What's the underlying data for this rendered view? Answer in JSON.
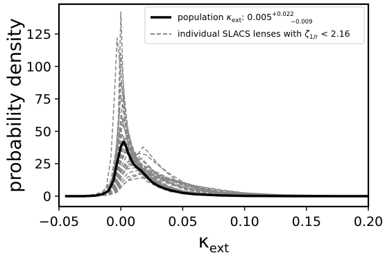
{
  "chart_data": {
    "type": "line",
    "xlabel": "κ",
    "xlabel_sub": "ext",
    "ylabel": "probability density",
    "xlim": [
      -0.05,
      0.2
    ],
    "ylim": [
      -8,
      148
    ],
    "x_ticks": [
      -0.05,
      0.0,
      0.05,
      0.1,
      0.15,
      0.2
    ],
    "x_tick_labels": [
      "−0.05",
      "0.00",
      "0.05",
      "0.10",
      "0.15",
      "0.20"
    ],
    "y_ticks": [
      0,
      25,
      50,
      75,
      100,
      125
    ],
    "y_tick_labels": [
      "0",
      "25",
      "50",
      "75",
      "100",
      "125"
    ],
    "legend": {
      "placement": "top-right",
      "entries": [
        {
          "kind": "population",
          "label_prefix": "population ",
          "label_math": "κ",
          "label_sub": "ext",
          "label_value": ": 0.005",
          "label_sup": "+0.022",
          "label_low": "−0.009"
        },
        {
          "kind": "individual",
          "label_prefix": "individual SLACS lenses with ",
          "label_math": "ζ",
          "label_sub": "1/r",
          "label_value": " < 2.16"
        }
      ]
    },
    "colors": {
      "population": "#000000",
      "individual": "#888888"
    },
    "series": [
      {
        "role": "population",
        "x": [
          -0.045,
          -0.03,
          -0.02,
          -0.015,
          -0.01,
          -0.006,
          -0.003,
          0.0,
          0.002,
          0.004,
          0.006,
          0.008,
          0.01,
          0.013,
          0.016,
          0.02,
          0.025,
          0.03,
          0.035,
          0.04,
          0.05,
          0.06,
          0.08,
          0.1,
          0.14,
          0.2
        ],
        "y": [
          0,
          0,
          0.5,
          1.5,
          4,
          12,
          26,
          38,
          42,
          39,
          33,
          29,
          25,
          22,
          20,
          16,
          11,
          8,
          6,
          4.5,
          2.5,
          1.5,
          0.6,
          0.2,
          0,
          0
        ]
      },
      {
        "role": "individual",
        "x": [
          -0.045,
          -0.02,
          -0.01,
          -0.005,
          -0.002,
          0.0,
          0.002,
          0.004,
          0.007,
          0.01,
          0.015,
          0.02,
          0.03,
          0.04,
          0.06,
          0.1,
          0.2
        ],
        "y": [
          0,
          0.5,
          3,
          15,
          60,
          142,
          85,
          52,
          38,
          28,
          20,
          14,
          8,
          4,
          1.5,
          0.3,
          0
        ]
      },
      {
        "role": "individual",
        "x": [
          -0.045,
          -0.02,
          -0.012,
          -0.008,
          -0.005,
          -0.003,
          0.0,
          0.003,
          0.006,
          0.01,
          0.015,
          0.02,
          0.03,
          0.04,
          0.06,
          0.1,
          0.2
        ],
        "y": [
          0,
          0.5,
          5,
          30,
          80,
          122,
          95,
          60,
          40,
          27,
          18,
          12,
          7,
          3.5,
          1.2,
          0.2,
          0
        ]
      },
      {
        "role": "individual",
        "x": [
          -0.045,
          -0.02,
          -0.01,
          -0.005,
          -0.002,
          0.0,
          0.003,
          0.006,
          0.01,
          0.015,
          0.02,
          0.03,
          0.04,
          0.06,
          0.1,
          0.2
        ],
        "y": [
          0,
          0.5,
          4,
          18,
          55,
          110,
          75,
          48,
          32,
          22,
          15,
          9,
          5,
          2,
          0.4,
          0
        ]
      },
      {
        "role": "individual",
        "x": [
          -0.045,
          -0.02,
          -0.01,
          -0.005,
          -0.002,
          0.0,
          0.003,
          0.006,
          0.01,
          0.015,
          0.02,
          0.03,
          0.04,
          0.06,
          0.1,
          0.2
        ],
        "y": [
          0,
          0.5,
          4,
          20,
          50,
          88,
          70,
          50,
          35,
          25,
          18,
          10,
          6,
          2.5,
          0.5,
          0
        ]
      },
      {
        "role": "individual",
        "x": [
          -0.045,
          -0.02,
          -0.012,
          -0.006,
          -0.003,
          0.0,
          0.003,
          0.006,
          0.01,
          0.015,
          0.02,
          0.03,
          0.04,
          0.06,
          0.1,
          0.2
        ],
        "y": [
          0,
          0.5,
          3,
          15,
          45,
          78,
          60,
          44,
          32,
          22,
          16,
          9,
          5,
          2,
          0.5,
          0
        ]
      },
      {
        "role": "individual",
        "x": [
          -0.045,
          -0.02,
          -0.01,
          -0.005,
          -0.002,
          0.001,
          0.004,
          0.008,
          0.012,
          0.018,
          0.025,
          0.035,
          0.05,
          0.07,
          0.1,
          0.2
        ],
        "y": [
          0,
          0.5,
          3,
          14,
          40,
          70,
          58,
          42,
          31,
          22,
          15,
          9,
          4,
          1.5,
          0.4,
          0
        ]
      },
      {
        "role": "individual",
        "x": [
          -0.045,
          -0.02,
          -0.01,
          -0.005,
          -0.002,
          0.001,
          0.004,
          0.008,
          0.012,
          0.018,
          0.025,
          0.035,
          0.05,
          0.07,
          0.1,
          0.2
        ],
        "y": [
          0,
          0.5,
          3,
          12,
          35,
          62,
          54,
          40,
          30,
          21,
          15,
          9,
          4,
          1.5,
          0.4,
          0
        ]
      },
      {
        "role": "individual",
        "x": [
          -0.045,
          -0.02,
          -0.01,
          -0.006,
          -0.002,
          0.001,
          0.004,
          0.008,
          0.012,
          0.018,
          0.025,
          0.035,
          0.05,
          0.07,
          0.1,
          0.2
        ],
        "y": [
          0,
          0.5,
          2.5,
          10,
          30,
          55,
          50,
          38,
          28,
          20,
          14,
          8,
          4,
          1.5,
          0.3,
          0
        ]
      },
      {
        "role": "individual",
        "x": [
          -0.045,
          -0.02,
          -0.01,
          -0.005,
          0.0,
          0.004,
          0.008,
          0.012,
          0.017,
          0.022,
          0.03,
          0.04,
          0.05,
          0.07,
          0.1,
          0.2
        ],
        "y": [
          0,
          0.5,
          2,
          8,
          26,
          34,
          30,
          27,
          29,
          24,
          16,
          10,
          5.5,
          2,
          0.5,
          0
        ]
      },
      {
        "role": "individual",
        "x": [
          -0.045,
          -0.02,
          -0.01,
          -0.005,
          0.0,
          0.005,
          0.01,
          0.015,
          0.018,
          0.022,
          0.028,
          0.035,
          0.045,
          0.06,
          0.08,
          0.12,
          0.2
        ],
        "y": [
          0,
          0.3,
          1.5,
          5,
          15,
          22,
          28,
          34,
          38,
          34,
          27,
          20,
          12,
          6,
          2.5,
          0.5,
          0
        ]
      },
      {
        "role": "individual",
        "x": [
          -0.045,
          -0.02,
          -0.01,
          -0.005,
          0.0,
          0.005,
          0.01,
          0.015,
          0.02,
          0.025,
          0.03,
          0.04,
          0.05,
          0.06,
          0.08,
          0.12,
          0.2
        ],
        "y": [
          0,
          0.3,
          1.5,
          6,
          18,
          26,
          30,
          33,
          32,
          28,
          24,
          17,
          11,
          7,
          3,
          0.7,
          0
        ]
      },
      {
        "role": "individual",
        "x": [
          -0.045,
          -0.02,
          -0.01,
          -0.005,
          0.0,
          0.004,
          0.008,
          0.013,
          0.02,
          0.028,
          0.035,
          0.045,
          0.06,
          0.08,
          0.12,
          0.2
        ],
        "y": [
          0,
          0.4,
          2,
          9,
          30,
          40,
          34,
          28,
          22,
          17,
          13,
          9,
          5,
          2.5,
          0.6,
          0
        ]
      },
      {
        "role": "individual",
        "x": [
          -0.045,
          -0.02,
          -0.01,
          -0.004,
          0.0,
          0.004,
          0.009,
          0.015,
          0.022,
          0.03,
          0.04,
          0.05,
          0.07,
          0.1,
          0.2
        ],
        "y": [
          0,
          0.4,
          2.5,
          11,
          32,
          45,
          38,
          27,
          18,
          12,
          7,
          4,
          1.5,
          0.4,
          0
        ]
      },
      {
        "role": "individual",
        "x": [
          -0.045,
          -0.02,
          -0.01,
          -0.004,
          0.0,
          0.004,
          0.009,
          0.015,
          0.022,
          0.03,
          0.04,
          0.055,
          0.07,
          0.1,
          0.2
        ],
        "y": [
          0,
          0.4,
          2.5,
          10,
          28,
          36,
          31,
          24,
          18,
          13,
          9,
          5,
          2.5,
          0.6,
          0
        ]
      },
      {
        "role": "individual",
        "x": [
          -0.045,
          -0.02,
          -0.01,
          -0.004,
          0.0,
          0.004,
          0.01,
          0.016,
          0.023,
          0.03,
          0.04,
          0.055,
          0.07,
          0.1,
          0.2
        ],
        "y": [
          0,
          0.4,
          2,
          8,
          22,
          30,
          27,
          23,
          18,
          14,
          10,
          6,
          3,
          0.8,
          0
        ]
      },
      {
        "role": "individual",
        "x": [
          -0.045,
          -0.02,
          -0.01,
          -0.004,
          0.0,
          0.005,
          0.01,
          0.018,
          0.025,
          0.035,
          0.045,
          0.06,
          0.08,
          0.1,
          0.2
        ],
        "y": [
          0,
          0.3,
          1.5,
          6,
          18,
          25,
          24,
          21,
          17,
          12,
          8,
          5,
          2,
          0.8,
          0
        ]
      },
      {
        "role": "individual",
        "x": [
          -0.045,
          -0.02,
          -0.01,
          -0.004,
          0.0,
          0.005,
          0.012,
          0.02,
          0.03,
          0.04,
          0.05,
          0.065,
          0.08,
          0.1,
          0.2
        ],
        "y": [
          0,
          0.3,
          1.5,
          5,
          15,
          21,
          22,
          20,
          16,
          12,
          8.5,
          5,
          3,
          1.2,
          0
        ]
      },
      {
        "role": "individual",
        "x": [
          -0.045,
          -0.02,
          -0.01,
          -0.004,
          0.0,
          0.006,
          0.014,
          0.022,
          0.032,
          0.042,
          0.055,
          0.07,
          0.09,
          0.12,
          0.2
        ],
        "y": [
          0,
          0.2,
          1.2,
          4,
          12,
          18,
          20,
          19,
          16,
          13,
          9,
          6,
          3,
          1,
          0
        ]
      },
      {
        "role": "individual",
        "x": [
          -0.045,
          -0.02,
          -0.01,
          -0.004,
          0.0,
          0.006,
          0.014,
          0.022,
          0.032,
          0.045,
          0.06,
          0.08,
          0.1,
          0.13,
          0.2
        ],
        "y": [
          0,
          0.2,
          1,
          3.5,
          10,
          15,
          17,
          17,
          15,
          12,
          8,
          5,
          2.5,
          1,
          0
        ]
      },
      {
        "role": "individual",
        "x": [
          -0.045,
          -0.02,
          -0.01,
          -0.004,
          0.0,
          0.006,
          0.015,
          0.025,
          0.035,
          0.05,
          0.065,
          0.08,
          0.1,
          0.13,
          0.2
        ],
        "y": [
          0,
          0.2,
          0.8,
          3,
          8,
          12,
          14,
          14,
          13,
          10,
          7,
          4.5,
          2.5,
          1,
          0
        ]
      },
      {
        "role": "individual",
        "x": [
          -0.045,
          -0.02,
          -0.01,
          -0.003,
          0.002,
          0.008,
          0.016,
          0.026,
          0.038,
          0.05,
          0.065,
          0.08,
          0.1,
          0.13,
          0.2
        ],
        "y": [
          0,
          0.2,
          0.8,
          3,
          9,
          14,
          17,
          16,
          13,
          9.5,
          6,
          3.5,
          1.8,
          0.6,
          0
        ]
      },
      {
        "role": "individual",
        "x": [
          -0.045,
          -0.02,
          -0.01,
          -0.004,
          0.0,
          0.004,
          0.008,
          0.012,
          0.018,
          0.025,
          0.035,
          0.045,
          0.06,
          0.08,
          0.12,
          0.2
        ],
        "y": [
          0,
          0.4,
          2,
          9,
          26,
          35,
          36,
          33,
          27,
          20,
          13,
          8,
          4,
          1.8,
          0.4,
          0
        ]
      },
      {
        "role": "individual",
        "x": [
          -0.045,
          -0.02,
          -0.01,
          -0.004,
          0.0,
          0.004,
          0.009,
          0.015,
          0.022,
          0.03,
          0.04,
          0.05,
          0.065,
          0.08,
          0.12,
          0.2
        ],
        "y": [
          0,
          0.3,
          1.8,
          7,
          20,
          26,
          27,
          25,
          22,
          18,
          13,
          9,
          5,
          2.5,
          0.6,
          0
        ]
      },
      {
        "role": "individual",
        "x": [
          -0.045,
          -0.02,
          -0.01,
          -0.003,
          0.001,
          0.005,
          0.01,
          0.017,
          0.025,
          0.035,
          0.045,
          0.06,
          0.08,
          0.1,
          0.2
        ],
        "y": [
          0,
          0.3,
          1.5,
          6,
          17,
          23,
          24,
          22,
          19,
          15,
          11,
          7,
          3.5,
          1.5,
          0
        ]
      },
      {
        "role": "individual",
        "x": [
          -0.045,
          -0.02,
          -0.01,
          -0.005,
          -0.002,
          0.001,
          0.004,
          0.008,
          0.013,
          0.02,
          0.03,
          0.04,
          0.055,
          0.075,
          0.1,
          0.2
        ],
        "y": [
          0,
          0.5,
          3,
          13,
          38,
          60,
          48,
          35,
          25,
          17,
          10,
          6,
          3,
          1.2,
          0.3,
          0
        ]
      },
      {
        "role": "individual",
        "x": [
          -0.045,
          -0.02,
          -0.01,
          -0.005,
          -0.002,
          0.001,
          0.004,
          0.008,
          0.013,
          0.02,
          0.03,
          0.04,
          0.055,
          0.075,
          0.1,
          0.2
        ],
        "y": [
          0,
          0.5,
          3,
          11,
          30,
          48,
          42,
          32,
          24,
          16,
          10,
          6,
          3,
          1.2,
          0.3,
          0
        ]
      },
      {
        "role": "individual",
        "x": [
          -0.045,
          -0.02,
          -0.01,
          -0.005,
          -0.002,
          0.001,
          0.004,
          0.008,
          0.013,
          0.02,
          0.03,
          0.04,
          0.055,
          0.075,
          0.1,
          0.2
        ],
        "y": [
          0,
          0.4,
          2.5,
          9,
          25,
          40,
          37,
          29,
          22,
          15,
          9.5,
          6,
          3,
          1.2,
          0.3,
          0
        ]
      },
      {
        "role": "individual",
        "x": [
          -0.045,
          -0.025,
          -0.015,
          -0.008,
          -0.004,
          -0.001,
          0.002,
          0.006,
          0.01,
          0.016,
          0.024,
          0.034,
          0.05,
          0.07,
          0.1,
          0.2
        ],
        "y": [
          0,
          0.6,
          3,
          12,
          35,
          65,
          56,
          40,
          29,
          19,
          12,
          7,
          3,
          1.2,
          0.3,
          0
        ]
      },
      {
        "role": "individual",
        "x": [
          -0.045,
          -0.025,
          -0.015,
          -0.008,
          -0.004,
          -0.001,
          0.002,
          0.006,
          0.01,
          0.016,
          0.024,
          0.034,
          0.05,
          0.07,
          0.1,
          0.2
        ],
        "y": [
          0,
          0.6,
          3,
          10,
          28,
          50,
          46,
          35,
          26,
          18,
          11,
          6.5,
          3,
          1.2,
          0.3,
          0
        ]
      },
      {
        "role": "individual",
        "x": [
          -0.045,
          -0.02,
          -0.01,
          -0.005,
          -0.001,
          0.002,
          0.005,
          0.009,
          0.014,
          0.02,
          0.028,
          0.038,
          0.05,
          0.07,
          0.1,
          0.2
        ],
        "y": [
          0,
          0.4,
          2.5,
          10,
          32,
          44,
          41,
          33,
          25,
          18,
          12,
          7.5,
          4,
          1.5,
          0.4,
          0
        ]
      }
    ]
  }
}
